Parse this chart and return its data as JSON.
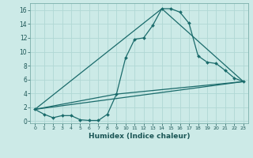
{
  "xlabel": "Humidex (Indice chaleur)",
  "xlim_min": -0.5,
  "xlim_max": 23.5,
  "ylim_min": -0.3,
  "ylim_max": 17.0,
  "yticks": [
    0,
    2,
    4,
    6,
    8,
    10,
    12,
    14,
    16
  ],
  "xticks": [
    0,
    1,
    2,
    3,
    4,
    5,
    6,
    7,
    8,
    9,
    10,
    11,
    12,
    13,
    14,
    15,
    16,
    17,
    18,
    19,
    20,
    21,
    22,
    23
  ],
  "bg_color": "#cceae7",
  "line_color": "#1a6b6b",
  "grid_color": "#b0d8d4",
  "spine_color": "#7aaeaa",
  "main_x": [
    0,
    1,
    2,
    3,
    4,
    5,
    6,
    7,
    8,
    9,
    10,
    11,
    12,
    13,
    14,
    15,
    16,
    17,
    18,
    19,
    20,
    21,
    22,
    23
  ],
  "main_y": [
    1.7,
    1.0,
    0.5,
    0.8,
    0.8,
    0.2,
    0.1,
    0.1,
    1.0,
    3.9,
    9.1,
    11.8,
    12.0,
    13.8,
    16.2,
    16.2,
    15.7,
    14.1,
    9.4,
    8.5,
    8.3,
    7.3,
    6.2,
    5.7
  ],
  "tri_line1_x": [
    0,
    23
  ],
  "tri_line1_y": [
    1.7,
    5.7
  ],
  "tri_line2_x": [
    0,
    9,
    23
  ],
  "tri_line2_y": [
    1.7,
    3.9,
    5.7
  ],
  "tri_line3_x": [
    0,
    14,
    23
  ],
  "tri_line3_y": [
    1.7,
    16.2,
    5.7
  ]
}
